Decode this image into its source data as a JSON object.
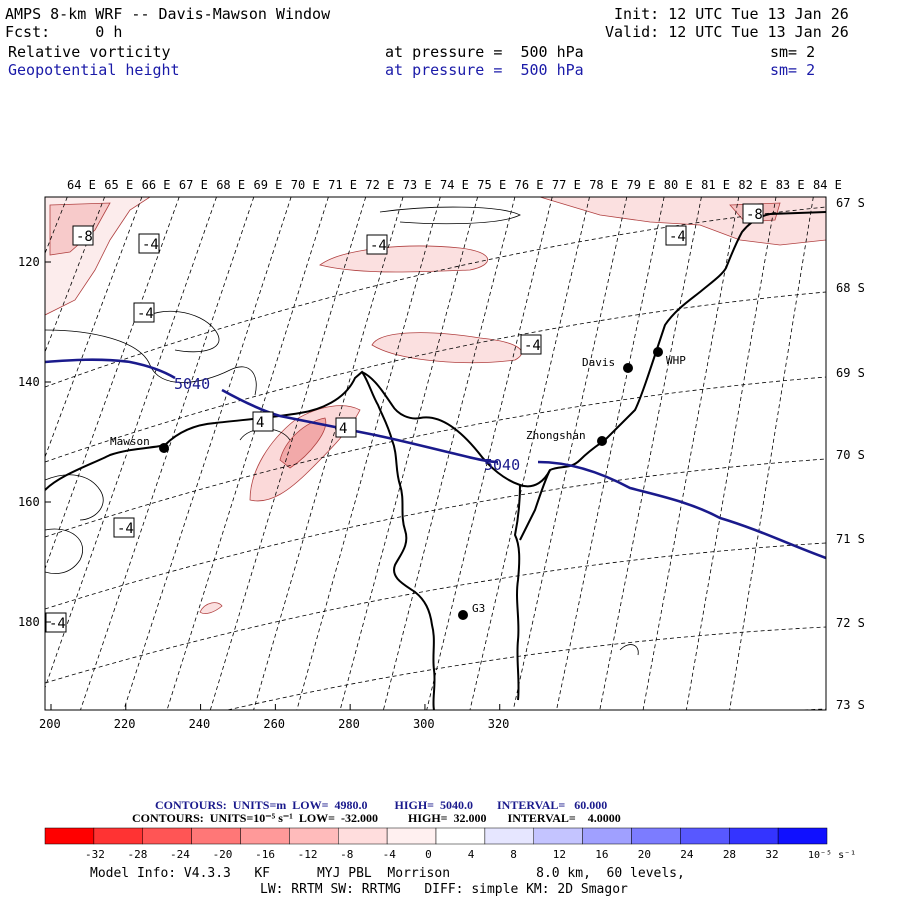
{
  "header": {
    "title": "AMPS 8-km WRF -- Davis-Mawson Window",
    "forecast": "Fcst:     0 h",
    "init": "Init: 12 UTC Tue 13 Jan 26",
    "valid": "Valid: 12 UTC Tue 13 Jan 26",
    "field1_name": "Relative vorticity",
    "field1_level": "at pressure =  500 hPa",
    "field1_smooth": "sm= 2",
    "field2_name": "Geopotential height",
    "field2_level": "at pressure =  500 hPa",
    "field2_smooth": "sm= 2"
  },
  "map": {
    "lon_labels": [
      "64 E",
      "65 E",
      "66 E",
      "67 E",
      "68 E",
      "69 E",
      "70 E",
      "71 E",
      "72 E",
      "73 E",
      "74 E",
      "75 E",
      "76 E",
      "77 E",
      "78 E",
      "79 E",
      "80 E",
      "81 E",
      "82 E",
      "83 E",
      "84 E"
    ],
    "lat_labels": [
      "67 S",
      "68 S",
      "69 S",
      "70 S",
      "71 S",
      "72 S",
      "73 S"
    ],
    "x_ticks": [
      "200",
      "220",
      "240",
      "260",
      "280",
      "300",
      "320"
    ],
    "y_ticks": [
      "120",
      "140",
      "160",
      "180"
    ],
    "stations": [
      {
        "name": "Mawson"
      },
      {
        "name": "Davis"
      },
      {
        "name": "WHP"
      },
      {
        "name": "Zhongshan"
      },
      {
        "name": "G3"
      }
    ],
    "contour_labels": {
      "height_a": "5040",
      "height_b": "5040",
      "vort": [
        "-8",
        "-4",
        "-4",
        "-4",
        "-4",
        "-4",
        "-8",
        "-4",
        "-4",
        "4",
        "4"
      ]
    },
    "colors": {
      "height": "#1a1a8c",
      "vort_pos": "#f2b8b8"
    }
  },
  "legend": {
    "line1": "CONTOURS:  UNITS=m  LOW=  4980.0         HIGH=  5040.0        INTERVAL=   60.000",
    "line2": "CONTOURS:  UNITS=10⁻⁵ s⁻¹  LOW=  -32.000          HIGH=  32.000       INTERVAL=    4.0000",
    "ticks": [
      "-32",
      "-28",
      "-24",
      "-20",
      "-16",
      "-12",
      "-8",
      "-4",
      "0",
      "4",
      "8",
      "12",
      "16",
      "20",
      "24",
      "28",
      "32"
    ],
    "unit": "10⁻⁵ s⁻¹",
    "colors": [
      "#ff0000",
      "#ff3333",
      "#ff5555",
      "#ff7777",
      "#ff9999",
      "#ffbbbb",
      "#ffdddd",
      "#fff0f0",
      "#ffffff",
      "#ffffff",
      "#e6e6ff",
      "#c4c4ff",
      "#a0a0ff",
      "#7c7cff",
      "#5858ff",
      "#3434ff",
      "#1010ff"
    ]
  },
  "footer": {
    "line1": "Model Info: V4.3.3   KF      MYJ PBL  Morrison           8.0 km,  60 levels,",
    "line2": "LW: RRTM SW: RRTMG   DIFF: simple KM: 2D Smagor"
  }
}
